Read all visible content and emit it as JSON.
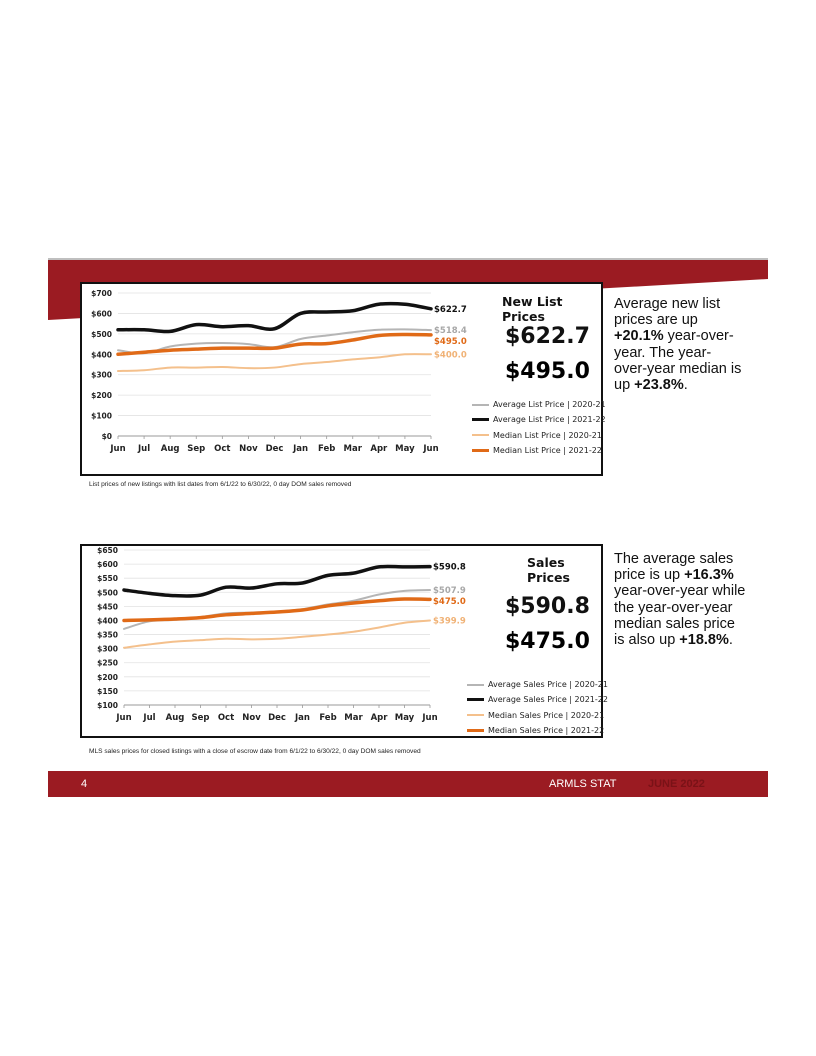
{
  "colors": {
    "brand_red": "#9b1b22",
    "avg_prev": "#b5b5b5",
    "avg_curr": "#111111",
    "med_prev": "#f4c08c",
    "med_curr": "#e06a17"
  },
  "page": {
    "number": "4",
    "org": "ARMLS STAT",
    "date": "JUNE 2022"
  },
  "list_section": {
    "title": "New List Prices",
    "avg_value": "$622.7",
    "med_value": "$495.0",
    "footnote": "List prices of new listings with list dates from 6/1/22 to 6/30/22, 0 day DOM sales removed",
    "text": {
      "p1": "Average new list prices are up ",
      "v1": "+20.1%",
      "p2": " year-over-year. The year-over-year median is up ",
      "v2": "+23.8%",
      "p3": "."
    }
  },
  "sales_section": {
    "title": "Sales Prices",
    "avg_value": "$590.8",
    "med_value": "$475.0",
    "footnote": "MLS sales prices for closed listings with a close of escrow date from 6/1/22 to 6/30/22, 0 day DOM sales removed",
    "text": {
      "p1": "The average sales price is up ",
      "v1": "+16.3%",
      "p2": " year-over-year while the year-over-year median sales price is also up ",
      "v2": "+18.8%",
      "p3": "."
    }
  },
  "chart_data": [
    {
      "type": "line",
      "title": "New List Prices",
      "x": [
        "Jun",
        "Jul",
        "Aug",
        "Sep",
        "Oct",
        "Nov",
        "Dec",
        "Jan",
        "Feb",
        "Mar",
        "Apr",
        "May",
        "Jun"
      ],
      "y_ticks": [
        "$0",
        "$100",
        "$200",
        "$300",
        "$400",
        "$500",
        "$600",
        "$700"
      ],
      "ylim": [
        0,
        700
      ],
      "grid": true,
      "legend_position": "right",
      "series": [
        {
          "name": "Average List Price | 2020-21",
          "color": "#b5b5b5",
          "end_label": "$518.4",
          "values": [
            420,
            405,
            438,
            452,
            455,
            450,
            435,
            475,
            492,
            508,
            520,
            522,
            518.4
          ]
        },
        {
          "name": "Average List Price | 2021-22",
          "color": "#111111",
          "end_label": "$622.7",
          "values": [
            520,
            520,
            512,
            545,
            535,
            540,
            525,
            600,
            607,
            613,
            645,
            645,
            622.7
          ]
        },
        {
          "name": "Median List Price | 2020-21",
          "color": "#f4c08c",
          "end_label": "$400.0",
          "values": [
            318,
            322,
            335,
            335,
            338,
            332,
            335,
            352,
            362,
            375,
            385,
            400,
            400.0
          ]
        },
        {
          "name": "Median List Price | 2021-22",
          "color": "#e06a17",
          "end_label": "$495.0",
          "values": [
            400,
            410,
            420,
            425,
            430,
            430,
            430,
            450,
            452,
            470,
            492,
            497,
            495.0
          ]
        }
      ]
    },
    {
      "type": "line",
      "title": "Sales Prices",
      "x": [
        "Jun",
        "Jul",
        "Aug",
        "Sep",
        "Oct",
        "Nov",
        "Dec",
        "Jan",
        "Feb",
        "Mar",
        "Apr",
        "May",
        "Jun"
      ],
      "y_ticks": [
        "$100",
        "$150",
        "$200",
        "$250",
        "$300",
        "$350",
        "$400",
        "$450",
        "$500",
        "$550",
        "$600",
        "$650"
      ],
      "ylim": [
        100,
        650
      ],
      "grid": true,
      "legend_position": "right",
      "series": [
        {
          "name": "Average Sales Price | 2020-21",
          "color": "#b5b5b5",
          "end_label": "$507.9",
          "values": [
            370,
            397,
            402,
            412,
            425,
            428,
            432,
            440,
            457,
            470,
            492,
            505,
            507.9
          ]
        },
        {
          "name": "Average Sales Price | 2021-22",
          "color": "#111111",
          "end_label": "$590.8",
          "values": [
            508,
            496,
            488,
            490,
            518,
            515,
            530,
            533,
            560,
            568,
            590,
            590,
            590.8
          ]
        },
        {
          "name": "Median Sales Price | 2020-21",
          "color": "#f4c08c",
          "end_label": "$399.9",
          "values": [
            303,
            315,
            325,
            330,
            335,
            333,
            335,
            342,
            350,
            360,
            375,
            392,
            399.9
          ]
        },
        {
          "name": "Median Sales Price | 2021-22",
          "color": "#e06a17",
          "end_label": "$475.0",
          "values": [
            400,
            402,
            405,
            410,
            420,
            425,
            430,
            437,
            452,
            462,
            470,
            476,
            475.0
          ]
        }
      ]
    }
  ]
}
